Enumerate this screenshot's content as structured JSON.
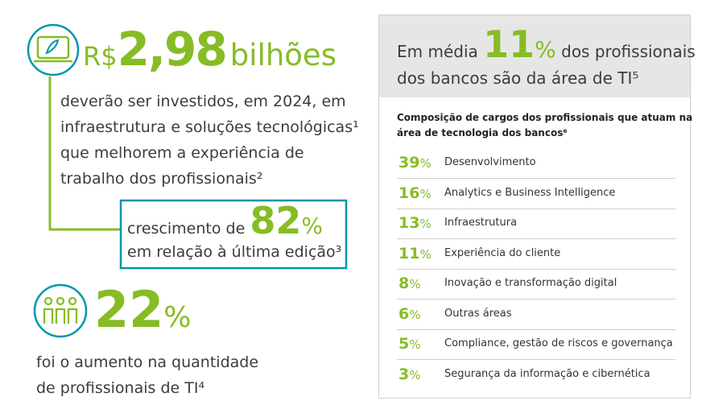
{
  "investment": {
    "prefix": "R$",
    "amount": "2,98",
    "unit": "bilhões",
    "lines": [
      "deverão ser investidos, em 2024, em",
      "infraestrutura e soluções tecnológicas¹",
      "que melhorem a experiência de",
      "trabalho dos profissionais²"
    ]
  },
  "growth": {
    "before": "crescimento de",
    "value": 82,
    "unit": "%",
    "after": "em relação à última edição³"
  },
  "headcount": {
    "value": 22,
    "unit": "%",
    "lines": [
      "foi o aumento na quantidade",
      "de profissionais de TI⁴"
    ]
  },
  "panel": {
    "header": {
      "before": "Em média",
      "value": 11,
      "unit": "%",
      "after": "dos profissionais",
      "line2": "dos bancos são da área de TI⁵"
    },
    "subtitle": [
      "Composição de cargos dos profissionais que atuam na",
      "área de tecnologia dos bancos⁶"
    ],
    "rows": [
      {
        "value": 39,
        "unit": "%",
        "label": "Desenvolvimento"
      },
      {
        "value": 16,
        "unit": "%",
        "label": "Analytics e Business Intelligence"
      },
      {
        "value": 13,
        "unit": "%",
        "label": "Infraestrutura"
      },
      {
        "value": 11,
        "unit": "%",
        "label": "Experiência do cliente"
      },
      {
        "value": 8,
        "unit": "%",
        "label": "Inovação e transformação digital"
      },
      {
        "value": 6,
        "unit": "%",
        "label": "Outras áreas"
      },
      {
        "value": 5,
        "unit": "%",
        "label": "Compliance, gestão de riscos e governança"
      },
      {
        "value": 3,
        "unit": "%",
        "label": "Segurança da informação e cibernética"
      }
    ]
  }
}
